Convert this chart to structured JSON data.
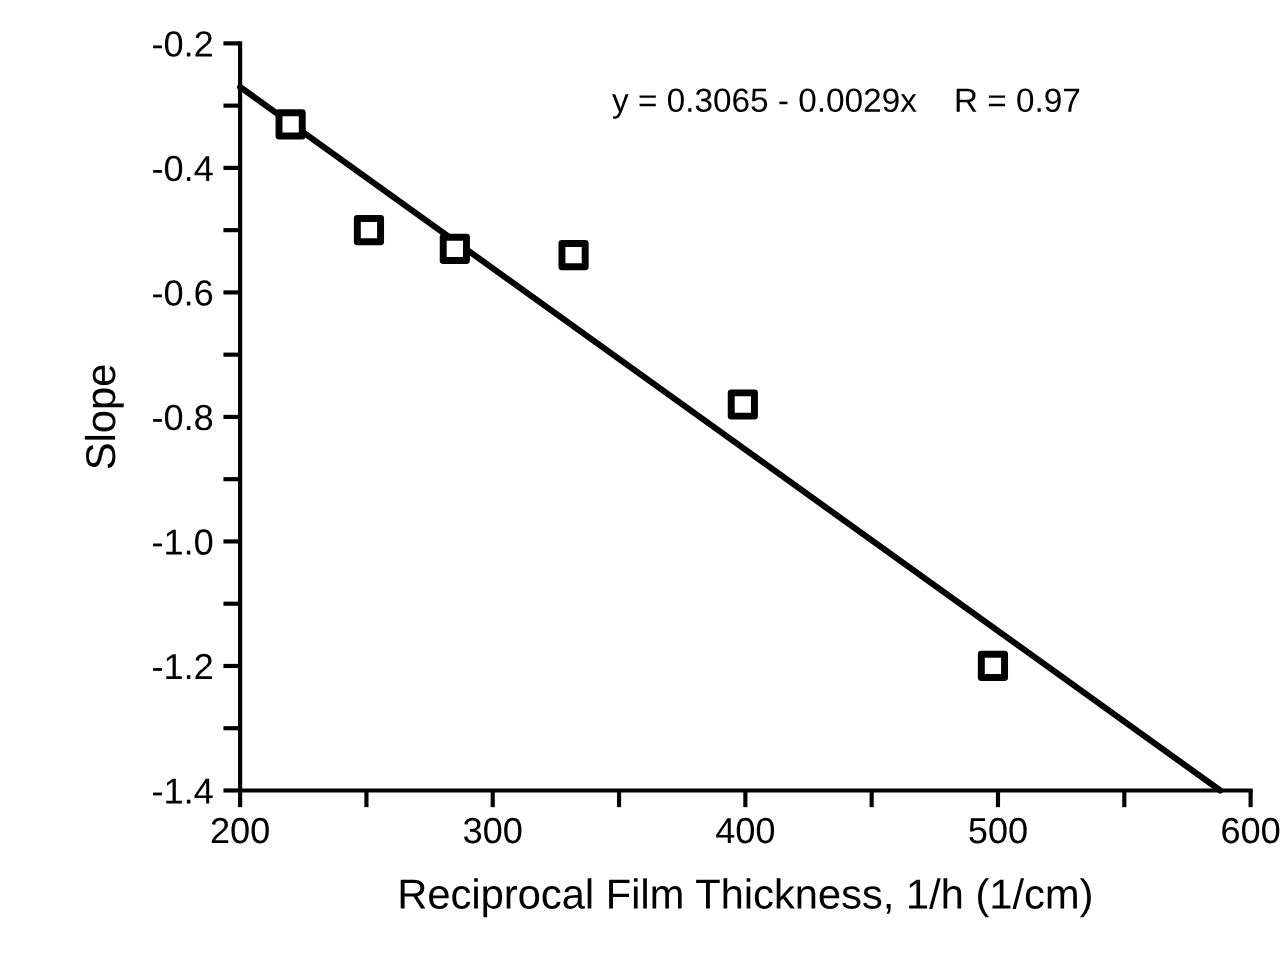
{
  "chart_data": {
    "type": "scatter",
    "xlabel": "Reciprocal Film Thickness, 1/h (1/cm)",
    "ylabel": "Slope",
    "annotations": [
      "y = 0.3065 - 0.0029x    R = 0.97"
    ],
    "series": [
      {
        "color": "#000000",
        "marker": "square",
        "x": [
          220,
          251,
          285,
          332,
          399,
          498
        ],
        "values": [
          -0.33,
          -0.5,
          -0.53,
          -0.54,
          -0.78,
          -1.2
        ]
      },
      {
        "type": "line",
        "color": "#000000",
        "marker": "none",
        "line_style": "solid",
        "x": [
          200,
          588
        ],
        "values": [
          -0.27,
          -1.4
        ]
      }
    ],
    "xlim": [
      200,
      600
    ],
    "ylim": [
      -1.4,
      -0.2
    ],
    "xticks": [
      200,
      {
        "value": 250,
        "label": null
      },
      300,
      {
        "value": 350,
        "label": null
      },
      400,
      {
        "value": 450,
        "label": null
      },
      500,
      {
        "value": 550,
        "label": null
      },
      600
    ],
    "yticks": [
      -1.4,
      {
        "value": -1.3,
        "label": null
      },
      -1.2,
      {
        "value": -1.1,
        "label": null
      },
      {
        "value": -1.0,
        "label": "-1.0"
      },
      {
        "value": -0.9,
        "label": null
      },
      -0.8,
      {
        "value": -0.7,
        "label": null
      },
      -0.6,
      {
        "value": -0.5,
        "label": null
      },
      -0.4,
      {
        "value": -0.3,
        "label": null
      },
      -0.2
    ],
    "grid": false,
    "legend": false
  }
}
